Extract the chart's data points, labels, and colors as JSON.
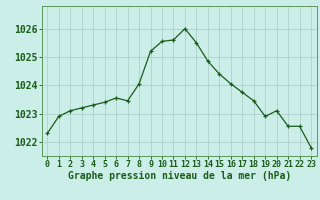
{
  "hours": [
    0,
    1,
    2,
    3,
    4,
    5,
    6,
    7,
    8,
    9,
    10,
    11,
    12,
    13,
    14,
    15,
    16,
    17,
    18,
    19,
    20,
    21,
    22,
    23
  ],
  "pressure": [
    1022.3,
    1022.9,
    1023.1,
    1023.2,
    1023.3,
    1023.4,
    1023.55,
    1023.45,
    1024.05,
    1025.2,
    1025.55,
    1025.6,
    1026.0,
    1025.5,
    1024.85,
    1024.4,
    1024.05,
    1023.75,
    1023.45,
    1022.9,
    1023.1,
    1022.55,
    1022.55,
    1021.8
  ],
  "line_color": "#1a5c1a",
  "marker_color": "#1a5c1a",
  "bg_color": "#cceee8",
  "grid_color": "#b0d0cc",
  "axis_label_color": "#1a5c1a",
  "tick_color": "#1a5c1a",
  "border_color": "#5a9a5a",
  "ylabel_ticks": [
    1022,
    1023,
    1024,
    1025,
    1026
  ],
  "ylim": [
    1021.5,
    1026.8
  ],
  "xlim": [
    -0.5,
    23.5
  ],
  "xlabel": "Graphe pression niveau de la mer (hPa)",
  "label_fontsize": 7,
  "tick_fontsize": 6
}
